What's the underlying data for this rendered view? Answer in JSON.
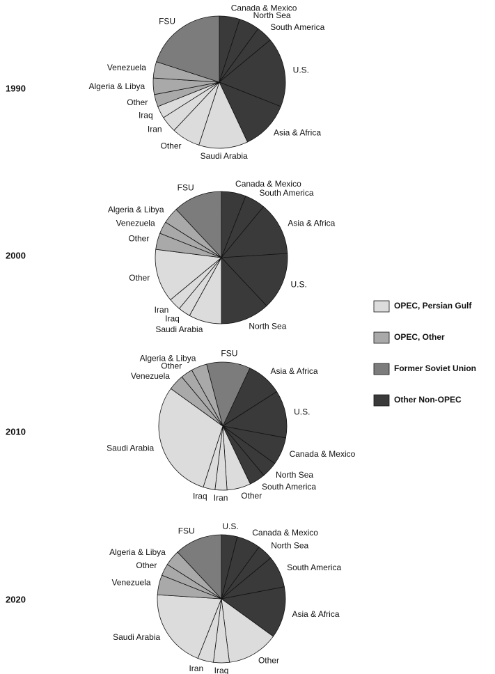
{
  "chart_data": [
    {
      "type": "pie",
      "title": "1990",
      "categories": [
        "Canada & Mexico",
        "North Sea",
        "South America",
        "U.S.",
        "Asia & Africa",
        "Saudi Arabia",
        "Other",
        "Iran",
        "Iraq",
        "Other",
        "Algeria & Libya",
        "Venezuela",
        "FSU"
      ],
      "values": [
        5,
        5,
        4,
        17,
        12,
        12,
        7,
        4,
        3,
        3,
        4,
        4,
        20
      ],
      "colors": [
        "#3a3a3a",
        "#3a3a3a",
        "#3a3a3a",
        "#3a3a3a",
        "#3a3a3a",
        "#dcdcdc",
        "#dcdcdc",
        "#dcdcdc",
        "#dcdcdc",
        "#a9a9a9",
        "#a9a9a9",
        "#a9a9a9",
        "#7c7c7c"
      ]
    },
    {
      "type": "pie",
      "title": "2000",
      "categories": [
        "Canada & Mexico",
        "South America",
        "Asia & Africa",
        "U.S.",
        "North Sea",
        "Saudi Arabia",
        "Iraq",
        "Iran",
        "Other",
        "Other",
        "Venezuela",
        "Algeria & Libya",
        "FSU"
      ],
      "values": [
        6,
        5,
        13,
        14,
        12,
        8,
        3,
        3,
        13,
        4,
        3,
        4,
        12
      ],
      "colors": [
        "#3a3a3a",
        "#3a3a3a",
        "#3a3a3a",
        "#3a3a3a",
        "#3a3a3a",
        "#dcdcdc",
        "#dcdcdc",
        "#dcdcdc",
        "#dcdcdc",
        "#a9a9a9",
        "#a9a9a9",
        "#a9a9a9",
        "#7c7c7c"
      ]
    },
    {
      "type": "pie",
      "title": "2010",
      "categories": [
        "Asia & Africa",
        "U.S.",
        "Canada & Mexico",
        "North Sea",
        "South America",
        "Other",
        "Iran",
        "Iraq",
        "Saudi Arabia",
        "Venezuela",
        "Other",
        "Algeria & Libya",
        "FSU"
      ],
      "values": [
        9,
        12,
        7,
        4,
        4,
        6,
        3,
        3,
        30,
        4,
        3,
        4,
        11
      ],
      "colors": [
        "#3a3a3a",
        "#3a3a3a",
        "#3a3a3a",
        "#3a3a3a",
        "#3a3a3a",
        "#dcdcdc",
        "#dcdcdc",
        "#dcdcdc",
        "#dcdcdc",
        "#a9a9a9",
        "#a9a9a9",
        "#a9a9a9",
        "#7c7c7c"
      ]
    },
    {
      "type": "pie",
      "title": "2020",
      "categories": [
        "U.S.",
        "Canada & Mexico",
        "North Sea",
        "South America",
        "Asia & Africa",
        "Other",
        "Iraq",
        "Iran",
        "Saudi Arabia",
        "Venezuela",
        "Other",
        "Algeria & Libya",
        "FSU"
      ],
      "values": [
        4,
        6,
        4,
        8,
        13,
        13,
        4,
        4,
        20,
        5,
        3,
        4,
        12
      ],
      "colors": [
        "#3a3a3a",
        "#3a3a3a",
        "#3a3a3a",
        "#3a3a3a",
        "#3a3a3a",
        "#dcdcdc",
        "#dcdcdc",
        "#dcdcdc",
        "#dcdcdc",
        "#a9a9a9",
        "#a9a9a9",
        "#a9a9a9",
        "#7c7c7c"
      ]
    }
  ],
  "legend": {
    "names": [
      "OPEC, Persian Gulf",
      "OPEC, Other",
      "Former Soviet Union",
      "Other Non-OPEC"
    ],
    "colors": [
      "#dcdcdc",
      "#a9a9a9",
      "#7c7c7c",
      "#3a3a3a"
    ]
  }
}
